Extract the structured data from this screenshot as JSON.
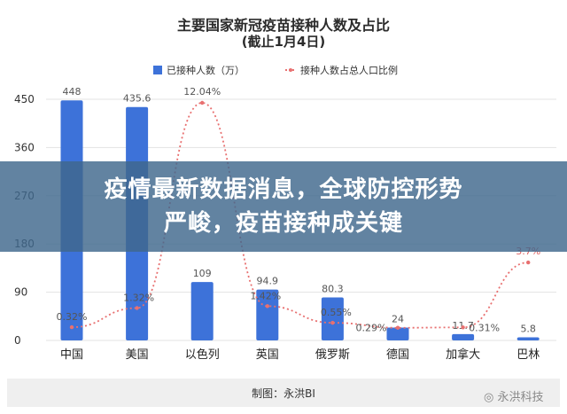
{
  "chart_data": {
    "type": "bar",
    "title": "主要国家新冠疫苗接种人数及占比",
    "subtitle": "(截止1月4日)",
    "categories": [
      "中国",
      "美国",
      "以色列",
      "英国",
      "俄罗斯",
      "德国",
      "加拿大",
      "巴林"
    ],
    "series": [
      {
        "name": "已接种人数（万）",
        "type": "bar",
        "color": "#3d72d9",
        "values": [
          448,
          435.6,
          109,
          94.9,
          80.3,
          24,
          11.7,
          5.8
        ],
        "labels": [
          "448",
          "435.6",
          "109",
          "94.9",
          "80.3",
          "24",
          "11.7",
          "5.8"
        ]
      },
      {
        "name": "接种人数占总人口比例",
        "type": "line",
        "style": "dotted",
        "color": "#e87070",
        "values": [
          0.32,
          1.32,
          12.04,
          1.42,
          0.55,
          0.29,
          0.31,
          3.7
        ],
        "labels": [
          "0.32%",
          "1.32%",
          "12.04%",
          "1.42%",
          "0.55%",
          "0.29%",
          "0.31%",
          "3.7%"
        ]
      }
    ],
    "yticks": [
      "450",
      "360",
      "270",
      "180",
      "90",
      "0"
    ],
    "ylim": [
      0,
      450
    ],
    "legend_position": "top",
    "grid": true
  },
  "banner": {
    "line1": "疫情最新数据消息，全球防控形势",
    "line2": "严峻，疫苗接种成关键"
  },
  "footer": {
    "credit": "制图：永洪BI"
  },
  "watermark": "永洪科技"
}
